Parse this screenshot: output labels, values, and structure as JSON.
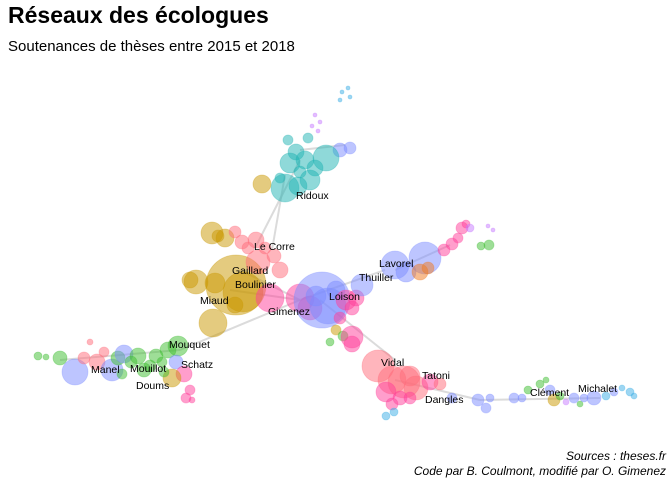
{
  "title": "Réseaux des écologues",
  "subtitle": "Soutenances de thèses entre 2015 et 2018",
  "caption": {
    "line1": "Sources : theses.fr",
    "line2": "Code par B. Coulmont, modifié par O. Gimenez"
  },
  "colors": {
    "gold": "#C99800",
    "teal": "#1FB3B3",
    "blue": "#7B8CFF",
    "pink": "#FF3E9A",
    "red": "#FF6B7A",
    "green": "#3DBE30",
    "purple": "#C77CFF",
    "orange": "#F07A20",
    "sky": "#3BAEE6",
    "edge": "#CCCCCC"
  },
  "names": {
    "ridoux": "Ridoux",
    "le_corre": "Le Corre",
    "gaillard": "Gaillard",
    "boulinier": "Boulinier",
    "miaud": "Miaud",
    "gimenez": "Gimenez",
    "loison": "Loison",
    "thuiller": "Thuiller",
    "lavorel": "Lavorel",
    "mouquet": "Mouquet",
    "schatz": "Schatz",
    "manel": "Manel",
    "mouillot": "Mouillot",
    "doums": "Doums",
    "vidal": "Vidal",
    "tatoni": "Tatoni",
    "dangles": "Dangles",
    "clement": "Clément",
    "michalet": "Michalet"
  }
}
